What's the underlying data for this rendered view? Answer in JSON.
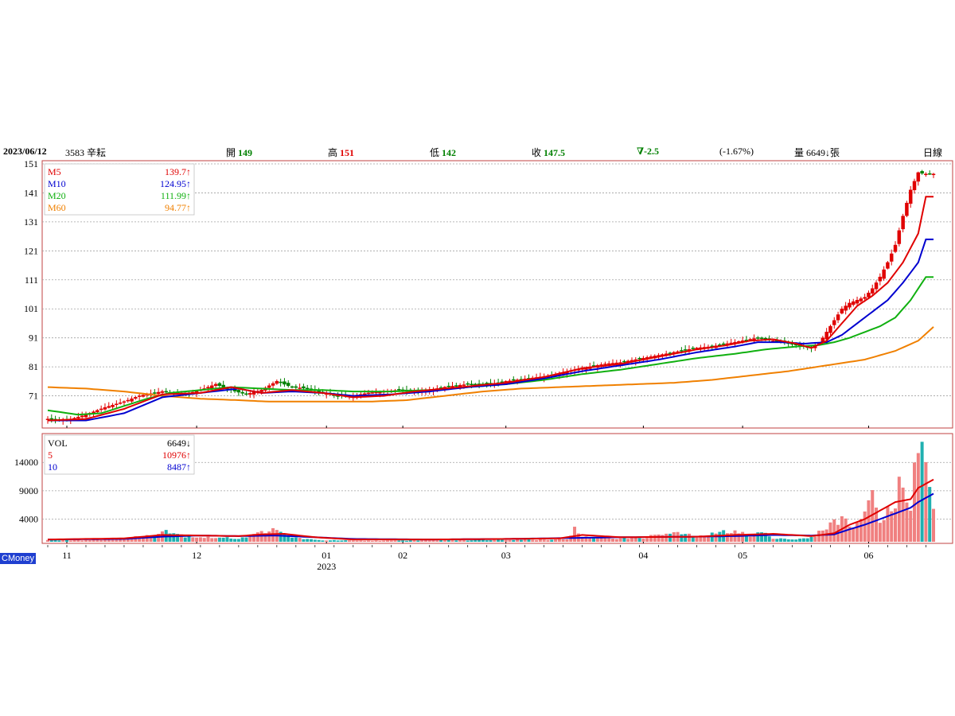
{
  "header": {
    "date": "2023/06/12",
    "stock": "3583 辛耘",
    "open_label": "開",
    "open_value": "149",
    "high_label": "高",
    "high_value": "151",
    "low_label": "低",
    "low_value": "142",
    "close_label": "收",
    "close_value": "147.5",
    "change": "∇-2.5",
    "change_pct": "(-1.67%)",
    "volume_label": "量",
    "volume_value": "6649",
    "volume_arrow": "↓",
    "volume_unit": "張",
    "period": "日線"
  },
  "brand": "CMoney",
  "colors": {
    "up": "#e00000",
    "down": "#008000",
    "ma5": "#e00000",
    "ma10": "#0000d0",
    "ma20": "#10b010",
    "ma60": "#f08000",
    "vol_up": "#f08080",
    "vol_down": "#20b0b0",
    "frame": "#c04040",
    "grid": "#a0a0a0"
  },
  "chart_data": [
    {
      "type": "candlestick",
      "y_ticks": [
        "151",
        "141",
        "131",
        "121",
        "111",
        "101",
        "91",
        "81",
        "71"
      ],
      "ylim": [
        61,
        151
      ],
      "legend": [
        {
          "name": "M5",
          "value": "139.7",
          "arrow": "↑",
          "color": "#e00000"
        },
        {
          "name": "M10",
          "value": "124.95",
          "arrow": "↑",
          "color": "#0000d0"
        },
        {
          "name": "M20",
          "value": "111.99",
          "arrow": "↑",
          "color": "#10b010"
        },
        {
          "name": "M60",
          "value": "94.77",
          "arrow": "↑",
          "color": "#f08000"
        }
      ],
      "close_anchors": [
        [
          0,
          63
        ],
        [
          5,
          62.5
        ],
        [
          10,
          64.5
        ],
        [
          15,
          67
        ],
        [
          20,
          69
        ],
        [
          24,
          71
        ],
        [
          30,
          72.5
        ],
        [
          36,
          71.5
        ],
        [
          40,
          73
        ],
        [
          44,
          75
        ],
        [
          48,
          73
        ],
        [
          52,
          71.5
        ],
        [
          56,
          73
        ],
        [
          60,
          76
        ],
        [
          64,
          74
        ],
        [
          68,
          73.5
        ],
        [
          72,
          72
        ],
        [
          76,
          71
        ],
        [
          80,
          71
        ],
        [
          84,
          72
        ],
        [
          88,
          72.5
        ],
        [
          92,
          73
        ],
        [
          96,
          72.5
        ],
        [
          100,
          73
        ],
        [
          104,
          74
        ],
        [
          110,
          75
        ],
        [
          116,
          75
        ],
        [
          120,
          76
        ],
        [
          126,
          77
        ],
        [
          132,
          78
        ],
        [
          138,
          80
        ],
        [
          142,
          81
        ],
        [
          146,
          82
        ],
        [
          150,
          82.5
        ],
        [
          156,
          84
        ],
        [
          162,
          85.5
        ],
        [
          166,
          86.5
        ],
        [
          170,
          87.5
        ],
        [
          174,
          88
        ],
        [
          178,
          89
        ],
        [
          182,
          90
        ],
        [
          186,
          91
        ],
        [
          190,
          90
        ],
        [
          194,
          89
        ],
        [
          198,
          88
        ],
        [
          200,
          87.5
        ],
        [
          202,
          89
        ],
        [
          204,
          93
        ],
        [
          206,
          97
        ],
        [
          208,
          101
        ],
        [
          210,
          103
        ],
        [
          212,
          104
        ],
        [
          214,
          105
        ],
        [
          216,
          108
        ],
        [
          218,
          112
        ],
        [
          220,
          117
        ],
        [
          222,
          123
        ],
        [
          224,
          133
        ],
        [
          226,
          142
        ],
        [
          228,
          148
        ],
        [
          230,
          147.5
        ]
      ],
      "ma5_anchors": [
        [
          0,
          62.5
        ],
        [
          10,
          63
        ],
        [
          20,
          66.5
        ],
        [
          30,
          71.5
        ],
        [
          40,
          72
        ],
        [
          48,
          74
        ],
        [
          56,
          72
        ],
        [
          64,
          73
        ],
        [
          72,
          72
        ],
        [
          80,
          70.5
        ],
        [
          88,
          71
        ],
        [
          96,
          72.5
        ],
        [
          104,
          73.5
        ],
        [
          112,
          74.5
        ],
        [
          120,
          75.5
        ],
        [
          130,
          77.5
        ],
        [
          140,
          80.5
        ],
        [
          150,
          82
        ],
        [
          160,
          84.5
        ],
        [
          170,
          87
        ],
        [
          178,
          88.5
        ],
        [
          184,
          90
        ],
        [
          190,
          90.5
        ],
        [
          196,
          89
        ],
        [
          200,
          87.5
        ],
        [
          204,
          90
        ],
        [
          208,
          96
        ],
        [
          212,
          102
        ],
        [
          216,
          105.5
        ],
        [
          220,
          110
        ],
        [
          224,
          117
        ],
        [
          228,
          127
        ],
        [
          230,
          139.7
        ]
      ],
      "ma10_anchors": [
        [
          0,
          62.5
        ],
        [
          10,
          62.5
        ],
        [
          20,
          65
        ],
        [
          30,
          70.5
        ],
        [
          40,
          72
        ],
        [
          50,
          73.5
        ],
        [
          56,
          72
        ],
        [
          64,
          72.5
        ],
        [
          72,
          72
        ],
        [
          80,
          71
        ],
        [
          90,
          71.5
        ],
        [
          100,
          72.5
        ],
        [
          110,
          74
        ],
        [
          120,
          75
        ],
        [
          130,
          77
        ],
        [
          140,
          79.5
        ],
        [
          150,
          81.5
        ],
        [
          160,
          83.5
        ],
        [
          170,
          86
        ],
        [
          180,
          88
        ],
        [
          186,
          89.5
        ],
        [
          192,
          89.5
        ],
        [
          198,
          89
        ],
        [
          204,
          89.5
        ],
        [
          208,
          92
        ],
        [
          212,
          96
        ],
        [
          216,
          100
        ],
        [
          220,
          104
        ],
        [
          224,
          110
        ],
        [
          228,
          117
        ],
        [
          230,
          124.95
        ]
      ],
      "ma20_anchors": [
        [
          0,
          66
        ],
        [
          8,
          64.5
        ],
        [
          14,
          65
        ],
        [
          20,
          67.5
        ],
        [
          26,
          70
        ],
        [
          32,
          72
        ],
        [
          40,
          73
        ],
        [
          48,
          74
        ],
        [
          56,
          73.5
        ],
        [
          64,
          73
        ],
        [
          72,
          73
        ],
        [
          80,
          72.5
        ],
        [
          90,
          72.5
        ],
        [
          100,
          73
        ],
        [
          110,
          74
        ],
        [
          120,
          75
        ],
        [
          130,
          76.5
        ],
        [
          140,
          78.5
        ],
        [
          150,
          80
        ],
        [
          160,
          82
        ],
        [
          170,
          84
        ],
        [
          180,
          85.5
        ],
        [
          188,
          87
        ],
        [
          196,
          88
        ],
        [
          202,
          88.5
        ],
        [
          206,
          89.5
        ],
        [
          210,
          91
        ],
        [
          214,
          93
        ],
        [
          218,
          95
        ],
        [
          222,
          98
        ],
        [
          226,
          104
        ],
        [
          230,
          111.99
        ]
      ],
      "ma60_anchors": [
        [
          0,
          74
        ],
        [
          10,
          73.5
        ],
        [
          20,
          72.5
        ],
        [
          30,
          71
        ],
        [
          40,
          70
        ],
        [
          50,
          69.5
        ],
        [
          58,
          69
        ],
        [
          66,
          69
        ],
        [
          74,
          69
        ],
        [
          84,
          69
        ],
        [
          94,
          69.5
        ],
        [
          104,
          71
        ],
        [
          114,
          72.5
        ],
        [
          124,
          73.5
        ],
        [
          134,
          74
        ],
        [
          144,
          74.5
        ],
        [
          154,
          75
        ],
        [
          164,
          75.5
        ],
        [
          174,
          76.5
        ],
        [
          184,
          78
        ],
        [
          194,
          79.5
        ],
        [
          204,
          81.5
        ],
        [
          214,
          83.5
        ],
        [
          222,
          86.5
        ],
        [
          228,
          90
        ],
        [
          232,
          94.77
        ]
      ]
    },
    {
      "type": "bar",
      "y_ticks": [
        "14000",
        "9000",
        "4000"
      ],
      "ylim": [
        0,
        18800
      ],
      "legend": [
        {
          "name": "VOL",
          "value": "6649",
          "arrow": "↓",
          "color": "#000000"
        },
        {
          "name": "5",
          "value": "10976",
          "arrow": "↑",
          "color": "#e00000"
        },
        {
          "name": "10",
          "value": "8487",
          "arrow": "↑",
          "color": "#0000d0"
        }
      ],
      "volume_anchors": [
        [
          0,
          300
        ],
        [
          10,
          300
        ],
        [
          20,
          600
        ],
        [
          24,
          900
        ],
        [
          28,
          1200
        ],
        [
          30,
          2400
        ],
        [
          32,
          1800
        ],
        [
          36,
          1000
        ],
        [
          40,
          800
        ],
        [
          50,
          600
        ],
        [
          54,
          1200
        ],
        [
          58,
          2200
        ],
        [
          60,
          1800
        ],
        [
          64,
          800
        ],
        [
          70,
          300
        ],
        [
          80,
          200
        ],
        [
          90,
          200
        ],
        [
          100,
          300
        ],
        [
          110,
          300
        ],
        [
          120,
          400
        ],
        [
          130,
          400
        ],
        [
          136,
          500
        ],
        [
          138,
          2200
        ],
        [
          140,
          800
        ],
        [
          150,
          600
        ],
        [
          156,
          700
        ],
        [
          160,
          1300
        ],
        [
          166,
          1500
        ],
        [
          170,
          800
        ],
        [
          176,
          1600
        ],
        [
          180,
          2100
        ],
        [
          184,
          900
        ],
        [
          186,
          1700
        ],
        [
          188,
          1300
        ],
        [
          190,
          700
        ],
        [
          196,
          400
        ],
        [
          200,
          700
        ],
        [
          202,
          1600
        ],
        [
          204,
          2800
        ],
        [
          206,
          3400
        ],
        [
          208,
          4400
        ],
        [
          210,
          2600
        ],
        [
          212,
          3600
        ],
        [
          214,
          4400
        ],
        [
          216,
          9100
        ],
        [
          218,
          4400
        ],
        [
          220,
          5600
        ],
        [
          222,
          7500
        ],
        [
          224,
          12000
        ],
        [
          226,
          5000
        ],
        [
          228,
          18600
        ],
        [
          230,
          12300
        ],
        [
          232,
          6649
        ]
      ],
      "vol_ma5_anchors": [
        [
          0,
          400
        ],
        [
          20,
          600
        ],
        [
          30,
          1200
        ],
        [
          40,
          1100
        ],
        [
          50,
          1000
        ],
        [
          56,
          1300
        ],
        [
          62,
          1400
        ],
        [
          70,
          800
        ],
        [
          80,
          400
        ],
        [
          100,
          400
        ],
        [
          120,
          500
        ],
        [
          134,
          600
        ],
        [
          140,
          1200
        ],
        [
          150,
          800
        ],
        [
          170,
          900
        ],
        [
          180,
          1200
        ],
        [
          190,
          1400
        ],
        [
          200,
          1000
        ],
        [
          206,
          1500
        ],
        [
          210,
          3000
        ],
        [
          214,
          4000
        ],
        [
          218,
          5500
        ],
        [
          222,
          7000
        ],
        [
          226,
          7500
        ],
        [
          228,
          9500
        ],
        [
          232,
          10976
        ]
      ],
      "vol_ma10_anchors": [
        [
          0,
          400
        ],
        [
          20,
          500
        ],
        [
          30,
          900
        ],
        [
          40,
          1100
        ],
        [
          50,
          1000
        ],
        [
          60,
          1100
        ],
        [
          70,
          800
        ],
        [
          80,
          500
        ],
        [
          100,
          400
        ],
        [
          120,
          500
        ],
        [
          140,
          700
        ],
        [
          150,
          800
        ],
        [
          170,
          900
        ],
        [
          180,
          1000
        ],
        [
          190,
          1200
        ],
        [
          200,
          1100
        ],
        [
          206,
          1300
        ],
        [
          210,
          2200
        ],
        [
          214,
          3000
        ],
        [
          218,
          4000
        ],
        [
          222,
          5000
        ],
        [
          226,
          6000
        ],
        [
          228,
          7000
        ],
        [
          232,
          8487
        ]
      ]
    }
  ],
  "x_axis": {
    "labels": [
      {
        "text": "11",
        "idx": 5
      },
      {
        "text": "12",
        "idx": 39
      },
      {
        "text": "01",
        "idx": 73,
        "sub": "2023"
      },
      {
        "text": "02",
        "idx": 93
      },
      {
        "text": "03",
        "idx": 120
      },
      {
        "text": "04",
        "idx": 156
      },
      {
        "text": "05",
        "idx": 182
      },
      {
        "text": "06",
        "idx": 215
      }
    ]
  }
}
